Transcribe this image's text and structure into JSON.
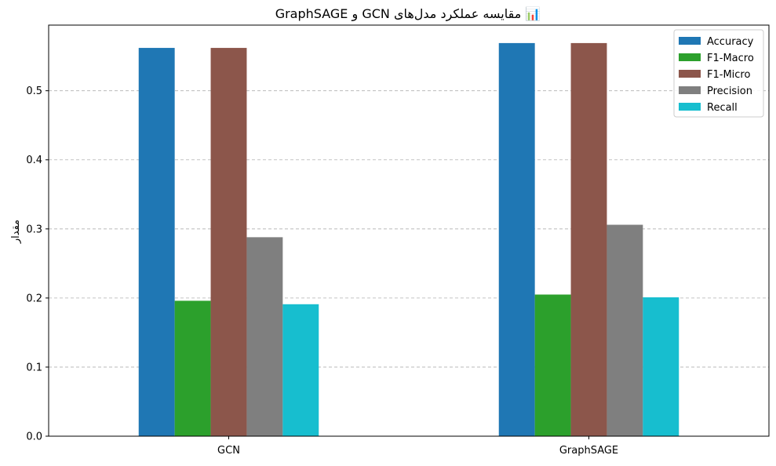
{
  "chart_data": {
    "type": "bar",
    "title": "📊 مقایسه عملکرد مدل‌های GCN و GraphSAGE",
    "xlabel": "",
    "ylabel": "مقدار",
    "categories": [
      "GCN",
      "GraphSAGE"
    ],
    "series": [
      {
        "name": "Accuracy",
        "color": "#1f77b4",
        "values": [
          0.562,
          0.569
        ]
      },
      {
        "name": "F1-Macro",
        "color": "#2ca02c",
        "values": [
          0.196,
          0.205
        ]
      },
      {
        "name": "F1-Micro",
        "color": "#8c564b",
        "values": [
          0.562,
          0.569
        ]
      },
      {
        "name": "Precision",
        "color": "#7f7f7f",
        "values": [
          0.288,
          0.306
        ]
      },
      {
        "name": "Recall",
        "color": "#17becf",
        "values": [
          0.191,
          0.201
        ]
      }
    ],
    "ylim": [
      0,
      0.595
    ],
    "yticks": [
      0.0,
      0.1,
      0.2,
      0.3,
      0.4,
      0.5
    ],
    "ytick_labels": [
      "0.0",
      "0.1",
      "0.2",
      "0.3",
      "0.4",
      "0.5"
    ],
    "grid": "y-dashed",
    "legend_position": "top-right"
  }
}
